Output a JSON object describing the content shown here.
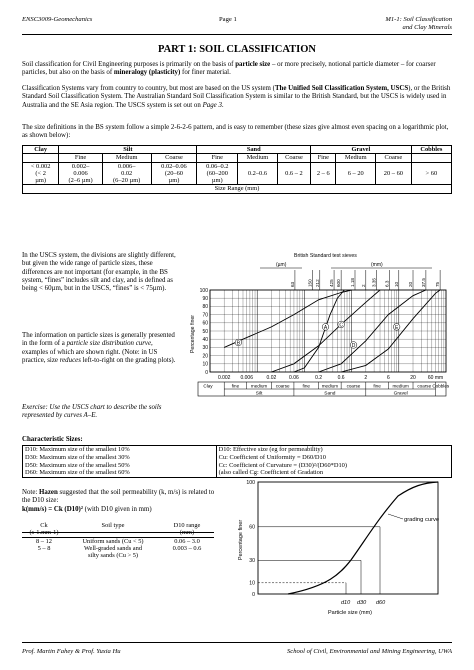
{
  "header": {
    "left": "ENSC3009-Geomechanics",
    "center": "Page 1",
    "right1": "M1-1: Soil Classification",
    "right2": "and Clay Minerals"
  },
  "title": "PART 1: SOIL CLASSIFICATION",
  "intro": {
    "a": "Soil classification for Civil Engineering purposes is primarily on the basis of",
    "b": "particle size",
    "c": "– or more precisely, notional particle diameter – for coarser particles, but also on the basis of",
    "d": "mineralogy (plasticity)",
    "e": "for finer material."
  },
  "systems": {
    "a": "Classification Systems vary from country to country, but most are based on the US system (",
    "b": "The Unified Soil Classification System, USCS",
    "c": "), or the British Standard Soil Classification System. The Australian Standard Soil Classification System is similar to the British Standard, but the USCS is widely used in Australia and the SE Asia region. The USCS system is set out on",
    "d": "Page 3",
    "e": "."
  },
  "bs_sizes": "The size definitions in the BS system follow a simple 2-6-2-6 pattern, and is easy to remember (these sizes give almost even spacing on a logarithmic plot, as shown below):",
  "size_table": {
    "groups": [
      "Clay",
      "Silt",
      "Sand",
      "Gravel",
      "Cobbles"
    ],
    "subs": [
      "Fine",
      "Medium",
      "Coarse",
      "Fine",
      "Medium",
      "Coarse",
      "Fine",
      "Medium",
      "Coarse"
    ],
    "clay_values": [
      "< 0.002",
      "(< 2",
      "µm)"
    ],
    "silt_values": [
      [
        "0.002–",
        "0.006",
        "(2–6 µm)"
      ],
      [
        "0.006–",
        "0.02",
        "(6–20 µm)"
      ],
      [
        "0.02–0.06",
        "(20–60",
        "µm)"
      ]
    ],
    "sand_values": [
      [
        "0.06–0.2",
        "(60–200",
        "µm)"
      ],
      [
        "0.2–0.6"
      ],
      [
        "0.6 – 2"
      ]
    ],
    "gravel_values": [
      [
        "2 – 6"
      ],
      [
        "6 – 20"
      ],
      [
        "20 – 60"
      ]
    ],
    "cobble_value": "> 60",
    "footer": "Size Range (mm)"
  },
  "uscs_para": "In the USCS system, the divisions are slightly different, but given the wide range of particle sizes, these differences are not important (for example, in the BS system, “fines” includes silt and clay, and is defined as being < 60µm, but in the USCS, “fines” is < 75µm).",
  "info_para": {
    "a": "The information on particle sizes is generally presented in the form of a",
    "b": "particle size distribution curve",
    "c": ", examples of which are shown right. (Note: in US practice, size",
    "d": "reduces",
    "e": "left-to-right on the grading plots)."
  },
  "exercise": "Exercise: Use the USCS chart to describe the soils represented by curves A–E.",
  "grading_chart": {
    "top_label": "British Standard test sieves",
    "um_label": "(µm)",
    "mm_label": "(mm)",
    "sieves_um": [
      "63",
      "150",
      "212",
      "425",
      "600"
    ],
    "sieves_mm": [
      "1.18",
      "2",
      "3.35",
      "6.3",
      "10",
      "20",
      "37.5",
      "75"
    ],
    "ylabel": "Percentage finer",
    "yticks": [
      "100",
      "90",
      "80",
      "70",
      "60",
      "50",
      "40",
      "30",
      "20",
      "10",
      "0"
    ],
    "xticks": [
      "0.002",
      "0.006",
      "0.02",
      "0.06",
      "0.2",
      "0.6",
      "2",
      "6",
      "20",
      "60 mm"
    ],
    "curve_labels": [
      "A",
      "B",
      "C",
      "D",
      "E"
    ],
    "bands_top": [
      "Clay",
      "fine",
      "medium",
      "coarse",
      "fine",
      "medium",
      "coarse",
      "fine",
      "medium",
      "coarse",
      "Cobbles"
    ],
    "bands_bottom": [
      "Silt",
      "Sand",
      "Gravel"
    ]
  },
  "char_sizes": {
    "title": "Characteristic Sizes:",
    "left": [
      "D10: Maximum size of the smallest 10%",
      "D30: Maximum size of the smallest 30%",
      "D50: Maximum size of the smallest 50%",
      "D60: Maximum size of the smallest 60%"
    ],
    "right": [
      "D10: Effective size (eg for permeability)",
      "Cu: Coefficient of Uniformity = D60/D10",
      "Cc: Coefficient of Curvature = (D30)²/(D60*D10)",
      "(also called Cg: Coefficient of Gradation"
    ]
  },
  "hazen": {
    "note_a": "Note:",
    "note_b": "Hazen",
    "note_c": "suggested that the soil permeability (k, m/s) is related to the D10 size:",
    "formula_a": "k(mm/s) = Ck (D10)²",
    "formula_b": "(with D10 given in mm)",
    "cols": [
      "Ck",
      "(s-1.mm-1)",
      "Soil type",
      "D10 range",
      "(mm)"
    ],
    "rows": [
      [
        "8 – 12",
        "Uniform sands (Cu < 5)",
        "0.06 – 3.0"
      ],
      [
        "5 – 8",
        "Well-graded sands and",
        "0.003 – 0.6"
      ],
      [
        "",
        "silty sands (Cu > 5)",
        ""
      ]
    ]
  },
  "small_chart": {
    "ylabel": "Percentage finer",
    "xlabel": "Particle size (mm)",
    "curve_label": "grading curve",
    "yticks": [
      "100",
      "60",
      "30",
      "10",
      "0"
    ],
    "dlabels": [
      "d10",
      "d30",
      "d60"
    ]
  },
  "footer": {
    "left": "Prof. Martin Fahey & Prof. Yuxia Hu",
    "right": "School of Civil, Environmental and Mining Engineering, UWA"
  }
}
